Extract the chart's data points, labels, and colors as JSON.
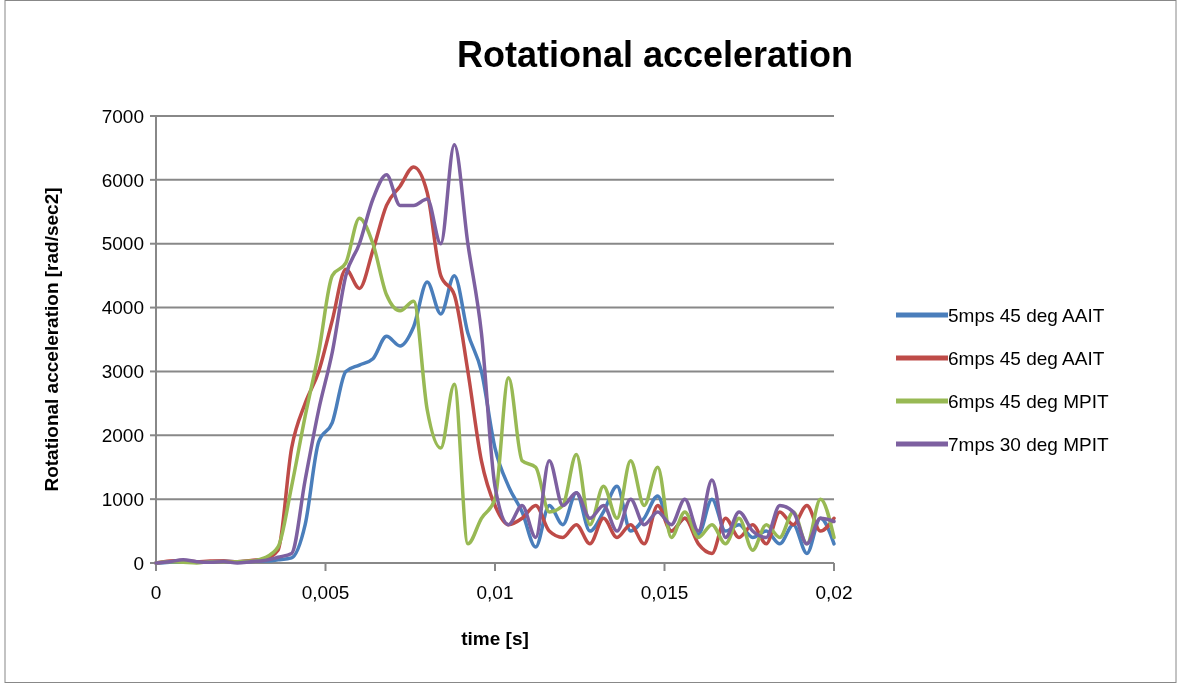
{
  "chart_data": {
    "type": "line",
    "title": "Rotational acceleration",
    "xlabel": "time [s]",
    "ylabel": "Rotational acceleration [rad/sec2]",
    "x": [
      0,
      0.0004,
      0.0008,
      0.0012,
      0.0016,
      0.002,
      0.0024,
      0.0028,
      0.0032,
      0.0036,
      0.004,
      0.0044,
      0.0048,
      0.0052,
      0.0056,
      0.006,
      0.0064,
      0.0068,
      0.0072,
      0.0076,
      0.008,
      0.0084,
      0.0088,
      0.0092,
      0.0096,
      0.01,
      0.0104,
      0.0108,
      0.0112,
      0.0116,
      0.012,
      0.0124,
      0.0128,
      0.0132,
      0.0136,
      0.014,
      0.0144,
      0.0148,
      0.0152,
      0.0156,
      0.016,
      0.0164,
      0.0168,
      0.0172,
      0.0176,
      0.018,
      0.0184,
      0.0188,
      0.0192,
      0.0196,
      0.02
    ],
    "series": [
      {
        "name": "5mps 45 deg AAIT",
        "color": "#4a7ebb",
        "values": [
          0,
          10,
          20,
          10,
          20,
          30,
          20,
          30,
          30,
          50,
          80,
          600,
          1900,
          2200,
          3000,
          3100,
          3200,
          3550,
          3400,
          3700,
          4400,
          3900,
          4500,
          3600,
          3000,
          1800,
          1200,
          800,
          250,
          900,
          600,
          1100,
          500,
          800,
          1200,
          500,
          700,
          1050,
          500,
          700,
          450,
          1000,
          500,
          600,
          400,
          500,
          300,
          600,
          150,
          700,
          300
        ]
      },
      {
        "name": "6mps 45 deg AAIT",
        "color": "#be4b48",
        "values": [
          0,
          30,
          40,
          20,
          30,
          30,
          20,
          40,
          60,
          200,
          1800,
          2500,
          3000,
          3800,
          4600,
          4300,
          4900,
          5600,
          5900,
          6200,
          5800,
          4500,
          4200,
          3000,
          1600,
          900,
          600,
          700,
          900,
          500,
          400,
          600,
          300,
          700,
          400,
          600,
          300,
          900,
          500,
          700,
          300,
          150,
          700,
          400,
          600,
          300,
          800,
          600,
          900,
          500,
          700
        ]
      },
      {
        "name": "6mps 45 deg MPIT",
        "color": "#98b954",
        "values": [
          0,
          20,
          10,
          0,
          20,
          10,
          20,
          30,
          80,
          250,
          1200,
          2300,
          3300,
          4500,
          4700,
          5400,
          5000,
          4200,
          3950,
          4100,
          2400,
          1800,
          2800,
          300,
          700,
          1000,
          2900,
          1600,
          1500,
          800,
          900,
          1700,
          600,
          1200,
          700,
          1600,
          900,
          1500,
          400,
          800,
          400,
          600,
          300,
          700,
          200,
          600,
          400,
          800,
          300,
          1000,
          400
        ]
      },
      {
        "name": "7mps 30 deg MPIT",
        "color": "#7d60a0",
        "values": [
          0,
          20,
          50,
          20,
          10,
          20,
          0,
          20,
          40,
          90,
          150,
          1300,
          2400,
          3300,
          4500,
          5000,
          5700,
          6080,
          5600,
          5600,
          5700,
          5000,
          6550,
          5000,
          3600,
          1200,
          600,
          900,
          400,
          1600,
          900,
          1100,
          700,
          900,
          500,
          1000,
          600,
          800,
          600,
          1000,
          500,
          1300,
          400,
          800,
          500,
          400,
          900,
          800,
          300,
          700,
          650
        ]
      }
    ],
    "xlim": [
      0,
      0.02
    ],
    "xticks": [
      0,
      {
        "value": 0.005,
        "label": "0,005"
      },
      {
        "value": 0.01,
        "label": "0,01"
      },
      {
        "value": 0.015,
        "label": "0,015"
      },
      {
        "value": 0.02,
        "label": "0,02"
      }
    ],
    "ylim": [
      0,
      7000
    ],
    "yticks": [
      0,
      1000,
      2000,
      3000,
      4000,
      5000,
      6000,
      7000
    ],
    "grid": "y",
    "legend": "right",
    "line_style": "solid",
    "marker": "none"
  }
}
